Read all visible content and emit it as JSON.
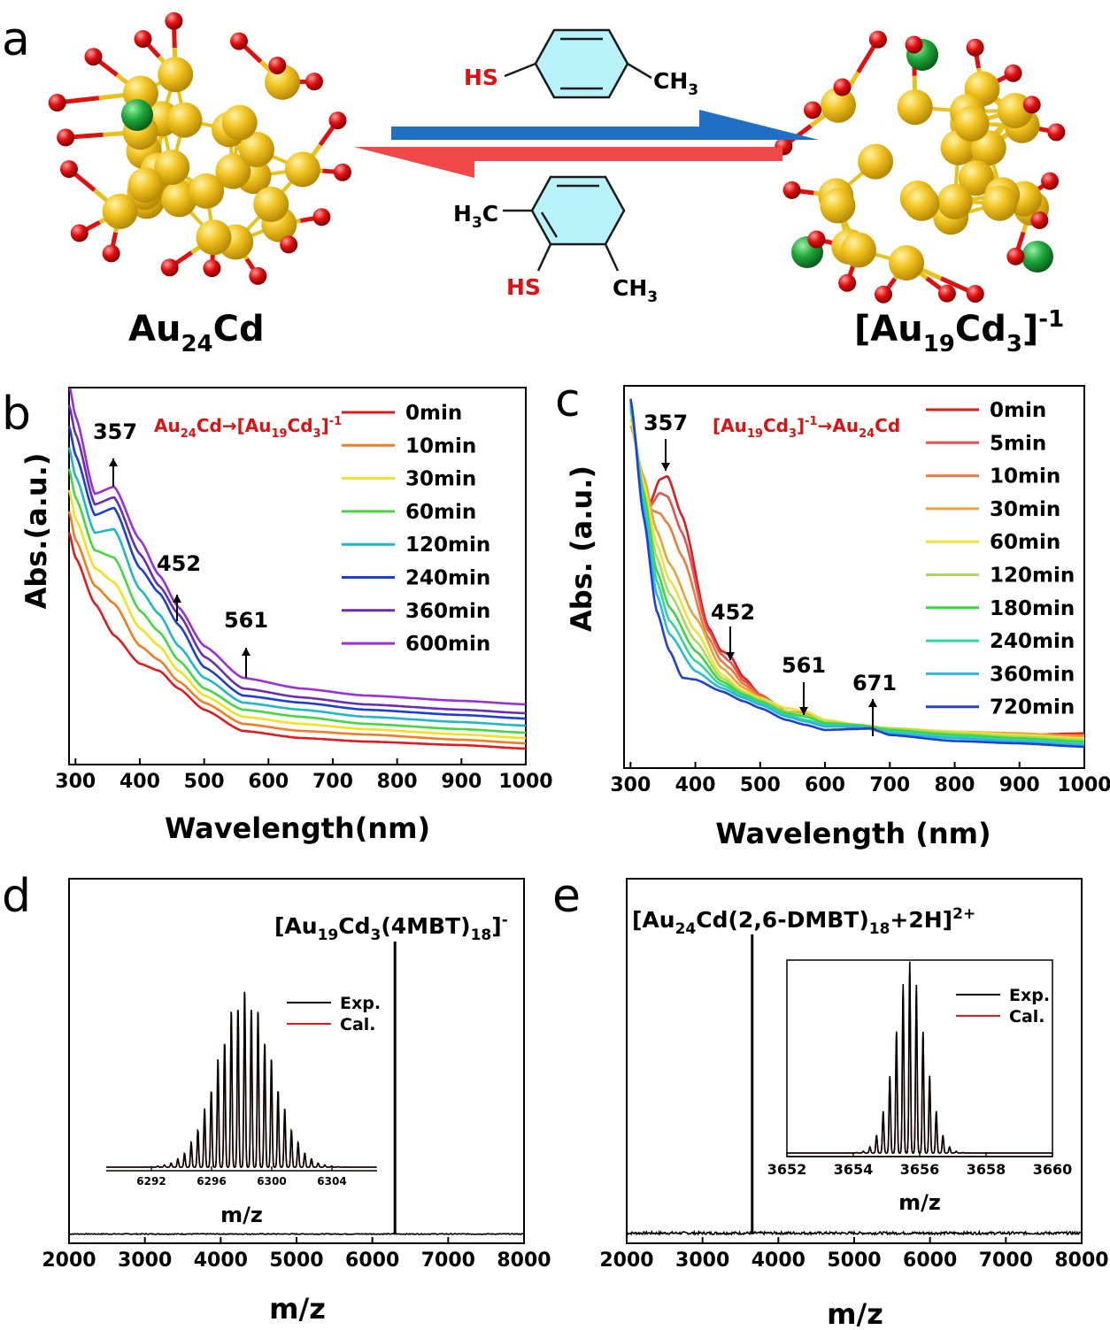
{
  "panel_a": {
    "label": "a",
    "left_structure": {
      "name": "Au",
      "sub": "24",
      "tail": "Cd"
    },
    "right_structure": {
      "name": "[Au",
      "sub1": "19",
      "mid": "Cd",
      "sub2": "3",
      "close": "]",
      "sup": "-1"
    },
    "top_ligand": {
      "hs": "HS",
      "ch3": "CH",
      "ch3_sub": "3"
    },
    "bottom_ligand": {
      "h3c": "H",
      "h3c_sub": "3",
      "h3c_tail": "C",
      "hs": "HS",
      "ch3": "CH",
      "ch3_sub": "3"
    },
    "colors": {
      "gold": "#f2c522",
      "cadmium": "#1fa83a",
      "sulfur": "#e01010",
      "blue_arrow": "#1f6fc4",
      "red_arrow": "#f04848",
      "ring": "#b8f2fa"
    }
  },
  "chart_data": [
    {
      "panel": "b",
      "type": "line",
      "xlabel": "Wavelength(nm)",
      "ylabel": "Abs.(a.u.)",
      "xlim": [
        290,
        1000
      ],
      "xticks": [
        "300",
        "400",
        "500",
        "600",
        "700",
        "800",
        "900",
        "1000"
      ],
      "annotation": {
        "from": "Au",
        "from_sub": "24",
        "from_tail": "Cd",
        "arrow": "→",
        "to": "[Au",
        "to_sub1": "19",
        "to_mid": "Cd",
        "to_sub2": "3",
        "to_close": "]",
        "to_sup": "-1"
      },
      "peaks": [
        {
          "label": "357",
          "x": 357,
          "direction": "up"
        },
        {
          "label": "452",
          "x": 452,
          "direction": "up"
        },
        {
          "label": "561",
          "x": 561,
          "direction": "up"
        }
      ],
      "series": [
        {
          "name": "0min",
          "color": "#e3191c",
          "x": [
            290,
            300,
            330,
            360,
            400,
            430,
            460,
            500,
            560,
            650,
            750,
            900,
            1000
          ],
          "y": [
            0.62,
            0.55,
            0.42,
            0.33,
            0.25,
            0.23,
            0.18,
            0.12,
            0.06,
            0.04,
            0.03,
            0.02,
            0.01
          ]
        },
        {
          "name": "10min",
          "color": "#f47b20",
          "x": [
            290,
            300,
            330,
            360,
            400,
            430,
            460,
            500,
            560,
            650,
            750,
            900,
            1000
          ],
          "y": [
            0.68,
            0.6,
            0.47,
            0.42,
            0.3,
            0.26,
            0.2,
            0.14,
            0.08,
            0.06,
            0.05,
            0.035,
            0.025
          ]
        },
        {
          "name": "30min",
          "color": "#f2e219",
          "x": [
            290,
            300,
            330,
            360,
            400,
            430,
            460,
            500,
            560,
            650,
            750,
            900,
            1000
          ],
          "y": [
            0.74,
            0.66,
            0.52,
            0.48,
            0.35,
            0.3,
            0.23,
            0.16,
            0.1,
            0.08,
            0.065,
            0.05,
            0.04
          ]
        },
        {
          "name": "60min",
          "color": "#41d93e",
          "x": [
            290,
            300,
            330,
            360,
            400,
            430,
            460,
            500,
            560,
            650,
            750,
            900,
            1000
          ],
          "y": [
            0.8,
            0.72,
            0.57,
            0.55,
            0.4,
            0.34,
            0.26,
            0.18,
            0.12,
            0.1,
            0.08,
            0.065,
            0.055
          ]
        },
        {
          "name": "120min",
          "color": "#1cb8c8",
          "x": [
            290,
            300,
            330,
            360,
            400,
            430,
            460,
            500,
            560,
            650,
            750,
            900,
            1000
          ],
          "y": [
            0.86,
            0.78,
            0.62,
            0.63,
            0.46,
            0.39,
            0.3,
            0.21,
            0.14,
            0.12,
            0.1,
            0.085,
            0.075
          ]
        },
        {
          "name": "240min",
          "color": "#1a3fd6",
          "x": [
            290,
            300,
            330,
            360,
            400,
            430,
            460,
            500,
            560,
            650,
            750,
            900,
            1000
          ],
          "y": [
            0.92,
            0.84,
            0.67,
            0.69,
            0.52,
            0.45,
            0.36,
            0.24,
            0.16,
            0.14,
            0.12,
            0.105,
            0.095
          ]
        },
        {
          "name": "360min",
          "color": "#6a2bb5",
          "x": [
            290,
            300,
            330,
            360,
            400,
            430,
            460,
            500,
            560,
            650,
            750,
            900,
            1000
          ],
          "y": [
            0.98,
            0.9,
            0.7,
            0.72,
            0.56,
            0.47,
            0.39,
            0.27,
            0.18,
            0.155,
            0.135,
            0.12,
            0.11
          ]
        },
        {
          "name": "600min",
          "color": "#9a2fd9",
          "x": [
            290,
            300,
            330,
            360,
            400,
            430,
            460,
            500,
            560,
            650,
            750,
            900,
            1000
          ],
          "y": [
            1.04,
            0.95,
            0.73,
            0.75,
            0.6,
            0.5,
            0.41,
            0.3,
            0.21,
            0.18,
            0.16,
            0.145,
            0.135
          ]
        }
      ]
    },
    {
      "panel": "c",
      "type": "line",
      "xlabel": "Wavelength (nm)",
      "ylabel": "Abs. (a.u.)",
      "xlim": [
        290,
        1000
      ],
      "xticks": [
        "300",
        "400",
        "500",
        "600",
        "700",
        "800",
        "900",
        "1000"
      ],
      "annotation": {
        "from": "[Au",
        "from_sub1": "19",
        "from_mid": "Cd",
        "from_sub2": "3",
        "from_close": "]",
        "from_sup": "-1",
        "arrow": "→",
        "to": "Au",
        "to_sub": "24",
        "to_tail": "Cd"
      },
      "peaks": [
        {
          "label": "357",
          "x": 357,
          "direction": "down"
        },
        {
          "label": "452",
          "x": 452,
          "direction": "down"
        },
        {
          "label": "561",
          "x": 570,
          "direction": "down"
        },
        {
          "label": "671",
          "x": 671,
          "direction": "up"
        }
      ],
      "series": [
        {
          "name": "0min",
          "color": "#e3191c",
          "x": [
            330,
            345,
            357,
            380,
            420,
            440,
            452,
            475,
            500,
            540,
            570,
            600,
            650,
            700,
            800,
            900,
            1000
          ],
          "y": [
            0.72,
            0.79,
            0.8,
            0.68,
            0.35,
            0.28,
            0.27,
            0.2,
            0.15,
            0.1,
            0.09,
            0.065,
            0.05,
            0.045,
            0.035,
            0.03,
            0.035
          ]
        },
        {
          "name": "5min",
          "color": "#ee4d4d",
          "x": [
            330,
            345,
            357,
            380,
            420,
            440,
            452,
            475,
            500,
            540,
            570,
            600,
            650,
            700,
            800,
            900,
            1000
          ],
          "y": [
            0.71,
            0.75,
            0.74,
            0.63,
            0.34,
            0.27,
            0.25,
            0.19,
            0.15,
            0.1,
            0.09,
            0.065,
            0.05,
            0.045,
            0.035,
            0.03,
            0.03
          ]
        },
        {
          "name": "10min",
          "color": "#f07a3a",
          "x": [
            330,
            345,
            357,
            380,
            420,
            440,
            452,
            475,
            500,
            540,
            570,
            600,
            650,
            700,
            800,
            900,
            1000
          ],
          "y": [
            0.7,
            0.69,
            0.66,
            0.56,
            0.32,
            0.25,
            0.23,
            0.18,
            0.145,
            0.1,
            0.095,
            0.07,
            0.055,
            0.045,
            0.035,
            0.03,
            0.028
          ]
        },
        {
          "name": "30min",
          "color": "#e8a33a",
          "x": [
            300,
            320,
            340,
            360,
            400,
            440,
            475,
            500,
            540,
            570,
            600,
            650,
            700,
            800,
            900,
            1000
          ],
          "y": [
            0.95,
            0.8,
            0.64,
            0.54,
            0.38,
            0.23,
            0.17,
            0.14,
            0.11,
            0.1,
            0.075,
            0.06,
            0.05,
            0.04,
            0.035,
            0.025
          ]
        },
        {
          "name": "60min",
          "color": "#efe03a",
          "x": [
            300,
            320,
            340,
            360,
            400,
            440,
            475,
            500,
            540,
            570,
            600,
            650,
            700,
            800,
            900,
            1000
          ],
          "y": [
            0.97,
            0.78,
            0.6,
            0.49,
            0.34,
            0.21,
            0.16,
            0.14,
            0.11,
            0.1,
            0.075,
            0.06,
            0.05,
            0.04,
            0.03,
            0.02
          ]
        },
        {
          "name": "120min",
          "color": "#a8d95a",
          "x": [
            300,
            320,
            340,
            360,
            400,
            440,
            475,
            500,
            540,
            570,
            600,
            650,
            700,
            800,
            900,
            1000
          ],
          "y": [
            0.99,
            0.76,
            0.56,
            0.45,
            0.31,
            0.2,
            0.155,
            0.135,
            0.1,
            0.09,
            0.07,
            0.06,
            0.05,
            0.035,
            0.025,
            0.015
          ]
        },
        {
          "name": "180min",
          "color": "#3ad63a",
          "x": [
            300,
            320,
            340,
            360,
            400,
            440,
            475,
            500,
            540,
            570,
            600,
            650,
            700,
            800,
            900,
            1000
          ],
          "y": [
            1.0,
            0.75,
            0.52,
            0.41,
            0.28,
            0.19,
            0.15,
            0.13,
            0.095,
            0.085,
            0.065,
            0.06,
            0.045,
            0.03,
            0.02,
            0.01
          ]
        },
        {
          "name": "240min",
          "color": "#2fd6a0",
          "x": [
            300,
            320,
            340,
            360,
            400,
            440,
            475,
            500,
            540,
            570,
            600,
            650,
            700,
            800,
            900,
            1000
          ],
          "y": [
            1.01,
            0.73,
            0.49,
            0.37,
            0.25,
            0.18,
            0.145,
            0.125,
            0.09,
            0.075,
            0.06,
            0.055,
            0.04,
            0.025,
            0.015,
            0.005
          ]
        },
        {
          "name": "360min",
          "color": "#2ab8e0",
          "x": [
            300,
            320,
            340,
            360,
            400,
            440,
            475,
            500,
            540,
            570,
            600,
            650,
            700,
            800,
            900,
            1000
          ],
          "y": [
            1.02,
            0.71,
            0.45,
            0.33,
            0.22,
            0.17,
            0.14,
            0.12,
            0.085,
            0.07,
            0.055,
            0.055,
            0.035,
            0.02,
            0.01,
            0.0
          ]
        },
        {
          "name": "720min",
          "color": "#1f3fd9",
          "x": [
            300,
            320,
            340,
            360,
            380,
            400,
            440,
            475,
            500,
            540,
            570,
            600,
            650,
            670,
            700,
            800,
            900,
            1000
          ],
          "y": [
            1.03,
            0.68,
            0.4,
            0.28,
            0.2,
            0.195,
            0.16,
            0.13,
            0.11,
            0.075,
            0.06,
            0.045,
            0.048,
            0.05,
            0.03,
            0.012,
            0.005,
            -0.005
          ]
        }
      ]
    },
    {
      "panel": "d",
      "type": "line",
      "xlabel": "m/z",
      "xlim": [
        2000,
        8000
      ],
      "xticks": [
        "2000",
        "3000",
        "4000",
        "5000",
        "6000",
        "7000",
        "8000"
      ],
      "peak_label": {
        "open": "[Au",
        "sub1": "19",
        "mid": "Cd",
        "sub2": "3",
        "ligand": "(4MBT)",
        "sub3": "18",
        "close": "]",
        "sup": "-"
      },
      "main_peak": {
        "x": 6298,
        "y": 1.0
      },
      "inset": {
        "xlabel": "m/z",
        "xlim": [
          6289,
          6307
        ],
        "xticks": [
          "6292",
          "6296",
          "6300",
          "6304"
        ],
        "peak_spacing": 0.444,
        "legend": [
          {
            "name": "Exp.",
            "color": "#000000"
          },
          {
            "name": "Cal.",
            "color": "#e3191c"
          }
        ],
        "center": 6298.2,
        "envelope_width": 4.1,
        "peak_count": 30
      }
    },
    {
      "panel": "e",
      "type": "line",
      "xlabel": "m/z",
      "xlim": [
        2000,
        8000
      ],
      "xticks": [
        "2000",
        "3000",
        "4000",
        "5000",
        "6000",
        "7000",
        "8000"
      ],
      "peak_label": {
        "open": "[Au",
        "sub1": "24",
        "mid": "Cd(2,6-DMBT)",
        "sub2": "18",
        "tail": "+2H]",
        "sup": "2+"
      },
      "main_peak": {
        "x": 3655,
        "y": 1.0
      },
      "inset": {
        "xlabel": "m/z",
        "xlim": [
          3652,
          3660
        ],
        "xticks": [
          "3652",
          "3654",
          "3656",
          "3658",
          "3660"
        ],
        "peak_spacing": 0.2,
        "legend": [
          {
            "name": "Exp.",
            "color": "#000000"
          },
          {
            "name": "Cal.",
            "color": "#e3191c"
          }
        ],
        "center": 3655.7,
        "envelope_width": 1.05,
        "peak_count": 32
      }
    }
  ]
}
